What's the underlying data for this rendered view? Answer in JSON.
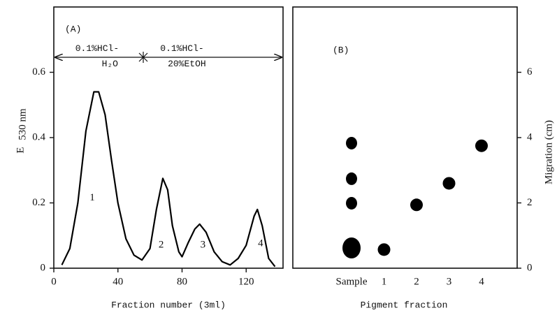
{
  "chart_data": [
    {
      "type": "line",
      "panel_label": "(A)",
      "xlabel": "Fraction number  (3ml)",
      "ylabel": "E",
      "ylabel_sub": "530 nm",
      "x": [
        5,
        10,
        15,
        20,
        25,
        28,
        32,
        36,
        40,
        45,
        50,
        55,
        60,
        64,
        68,
        71,
        74,
        78,
        80,
        84,
        88,
        91,
        95,
        100,
        105,
        110,
        115,
        120,
        125,
        127,
        130,
        134,
        138
      ],
      "values": [
        0.01,
        0.06,
        0.2,
        0.42,
        0.54,
        0.54,
        0.47,
        0.33,
        0.2,
        0.09,
        0.04,
        0.025,
        0.06,
        0.18,
        0.275,
        0.24,
        0.13,
        0.05,
        0.035,
        0.08,
        0.12,
        0.135,
        0.11,
        0.05,
        0.02,
        0.01,
        0.03,
        0.07,
        0.16,
        0.18,
        0.13,
        0.03,
        0.005
      ],
      "color": "#000000",
      "xlim": [
        0,
        143
      ],
      "ylim": [
        0,
        0.8
      ],
      "xticks": [
        0,
        40,
        80,
        120
      ],
      "yticks": [
        0,
        0.2,
        0.4,
        0.6
      ],
      "annotations": [
        {
          "text": "0.1%HCl-",
          "x": 27,
          "y": 0.673
        },
        {
          "text": "H₂O",
          "x": 35,
          "y": 0.626
        },
        {
          "text": "0.1%HCl-",
          "x": 80,
          "y": 0.673
        },
        {
          "text": "20%EtOH",
          "x": 83,
          "y": 0.626
        },
        {
          "text": "1",
          "x": 24,
          "y": 0.215
        },
        {
          "text": "2",
          "x": 67,
          "y": 0.07
        },
        {
          "text": "3",
          "x": 93,
          "y": 0.07
        },
        {
          "text": "4",
          "x": 129,
          "y": 0.075
        }
      ]
    },
    {
      "type": "scatter",
      "panel_label": "(B)",
      "xlabel": "Pigment fraction",
      "ylabel": "Migration (cm)",
      "categories": [
        "Sample",
        "1",
        "2",
        "3",
        "4"
      ],
      "x": [
        0,
        0,
        0,
        0,
        1,
        2,
        3,
        4
      ],
      "values": [
        3.83,
        2.74,
        1.99,
        0.62,
        0.57,
        1.94,
        2.6,
        3.75
      ],
      "color": "#000000",
      "ylim": [
        0,
        8
      ],
      "yticks": [
        0,
        2,
        4,
        6
      ]
    }
  ]
}
